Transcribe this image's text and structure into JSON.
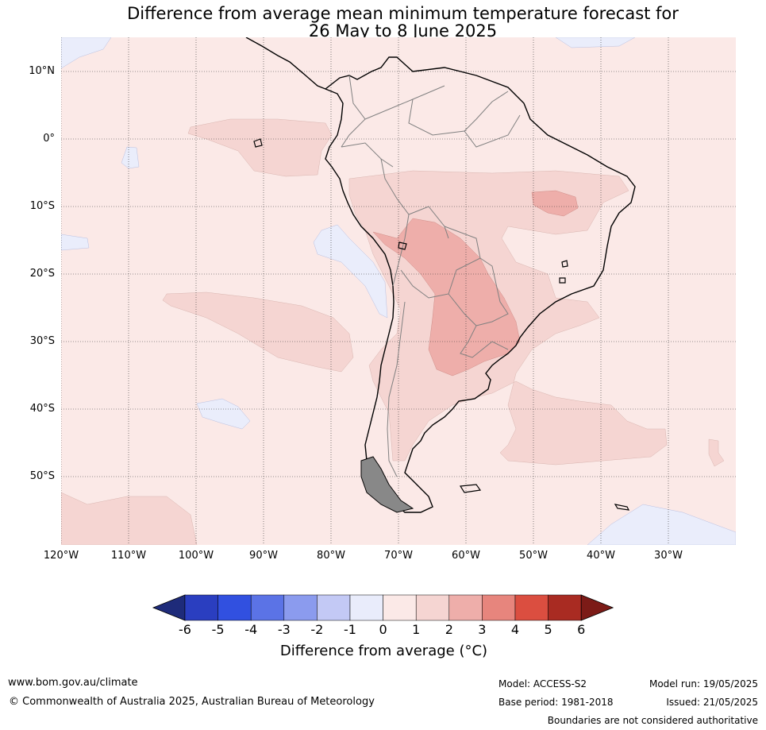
{
  "title": {
    "line1": "Difference from average mean minimum temperature forecast for",
    "line2": "26 May to 8 June 2025"
  },
  "map": {
    "lat_labels": [
      "10°N",
      "0°",
      "10°S",
      "20°S",
      "30°S",
      "40°S",
      "50°S"
    ],
    "lon_labels": [
      "120°W",
      "110°W",
      "100°W",
      "90°W",
      "80°W",
      "70°W",
      "60°W",
      "50°W",
      "40°W",
      "30°W"
    ],
    "colors": {
      "background_anomaly_0_1": "#fbe9e7",
      "anomaly_1_2": "#f5d5d2",
      "anomaly_2_3": "#eeaeaa",
      "anomaly_neg_1_0": "#eaedfb",
      "coastline": "#000000",
      "borders": "#808080",
      "grid": "#333333"
    }
  },
  "colorbar": {
    "tick_labels": [
      "-6",
      "-5",
      "-4",
      "-3",
      "-2",
      "-1",
      "0",
      "1",
      "2",
      "3",
      "4",
      "5",
      "6"
    ],
    "colors": [
      "#1e2b7a",
      "#2a3ec0",
      "#3150e0",
      "#5b73e6",
      "#8b9bee",
      "#c3c9f5",
      "#e9ecfb",
      "#fbe9e7",
      "#f5d5d2",
      "#eeaeaa",
      "#e7857d",
      "#db4e40",
      "#a92b22",
      "#7c1b17"
    ],
    "label": "Difference from average ($^\\circ$C)",
    "label_display": "Difference from average (°C)"
  },
  "footer": {
    "website": "www.bom.gov.au/climate",
    "copyright": "© Commonwealth of Australia 2025, Australian Bureau of Meteorology",
    "model": "Model: ACCESS-S2",
    "base_period": "Base period: 1981-2018",
    "model_run": "Model run: 19/05/2025",
    "issued": "Issued: 21/05/2025",
    "disclaimer": "Boundaries are not considered authoritative"
  }
}
